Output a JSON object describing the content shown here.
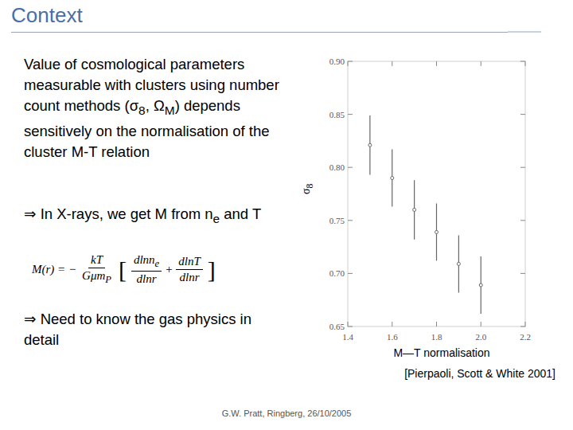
{
  "slide": {
    "title": "Context",
    "paragraph": [
      "Value of cosmological parameters measurable with clusters using number count methods (σ",
      {
        "sub": "8"
      },
      ", Ω",
      {
        "sub": "M"
      },
      ") depends sensitively on the normalisation of the cluster M-T relation"
    ],
    "bullet1": [
      "⇒ In X-rays, we get M from n",
      {
        "sub": "e"
      },
      " and T"
    ],
    "equation": {
      "lhs": "M(r) = −",
      "prefactor": {
        "num": [
          "kT"
        ],
        "den": [
          "Gμm",
          {
            "sub": "P"
          }
        ]
      },
      "open": "[",
      "term1": {
        "num": [
          "dlnn",
          {
            "sub": "e"
          }
        ],
        "den": [
          "dlnr"
        ]
      },
      "plus": "+",
      "term2": {
        "num": [
          "dlnT"
        ],
        "den": [
          "dlnr"
        ]
      },
      "close": "]"
    },
    "bullet2": [
      "⇒ Need to know the gas physics in detail"
    ],
    "citation": "[Pierpaoli, Scott & White 2001]",
    "footer": "G.W. Pratt, Ringberg, 26/10/2005"
  },
  "chart_data": {
    "type": "scatter",
    "xlabel": "M—T normalisation",
    "ylabel": [
      "σ",
      {
        "sub": "8"
      }
    ],
    "x": [
      1.5,
      1.6,
      1.7,
      1.8,
      1.9,
      2.0
    ],
    "values": [
      0.821,
      0.79,
      0.76,
      0.739,
      0.709,
      0.689
    ],
    "errors": [
      0.028,
      0.027,
      0.028,
      0.027,
      0.027,
      0.027
    ],
    "color": "#666666",
    "marker": "circle",
    "xlim": [
      1.4,
      2.2
    ],
    "xticks": [
      1.4,
      1.6,
      1.8,
      {
        "value": 2.0,
        "label": "2.0"
      },
      2.2
    ],
    "ylim": [
      0.65,
      0.9
    ],
    "yticks": [
      0.65,
      {
        "value": 0.7,
        "label": "0.70"
      },
      0.75,
      {
        "value": 0.8,
        "label": "0.80"
      },
      0.85,
      {
        "value": 0.9,
        "label": "0.90"
      }
    ],
    "grid": false
  }
}
